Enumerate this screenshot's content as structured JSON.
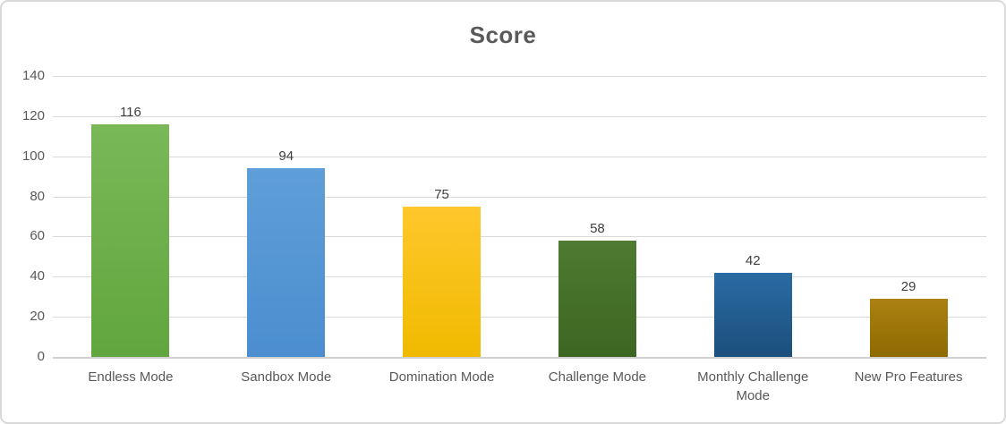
{
  "chart_data": {
    "type": "bar",
    "title": "Score",
    "categories": [
      "Endless Mode",
      "Sandbox Mode",
      "Domination Mode",
      "Challenge Mode",
      "Monthly Challenge Mode",
      "New Pro Features"
    ],
    "values": [
      116,
      94,
      75,
      58,
      42,
      29
    ],
    "data_labels": [
      "116",
      "94",
      "75",
      "58",
      "42",
      "29"
    ],
    "xlabel": "",
    "ylabel": "",
    "ylim": [
      0,
      140
    ],
    "yticks": [
      0,
      20,
      40,
      60,
      80,
      100,
      120,
      140
    ],
    "grid": true,
    "legend_position": "none",
    "bar_colors": [
      {
        "name": "green",
        "top": "#7AB857",
        "bottom": "#61A63E"
      },
      {
        "name": "blue",
        "top": "#5F9ED8",
        "bottom": "#4B8ECF"
      },
      {
        "name": "yellow",
        "top": "#FFC72B",
        "bottom": "#F0BA00"
      },
      {
        "name": "dark-green",
        "top": "#4E7A31",
        "bottom": "#3D6622"
      },
      {
        "name": "dark-blue",
        "top": "#2A6BA3",
        "bottom": "#1B4F7D"
      },
      {
        "name": "dark-gold",
        "top": "#AB8112",
        "bottom": "#8F6A00"
      }
    ]
  },
  "colors": {
    "title_text": "#595959",
    "axis_text": "#595959",
    "data_label_text": "#3F3F3F",
    "gridline": "#D9D9D9",
    "axis_line": "#D0D0D0",
    "frame_border": "#D9D9D9",
    "background": "#FFFFFF"
  }
}
